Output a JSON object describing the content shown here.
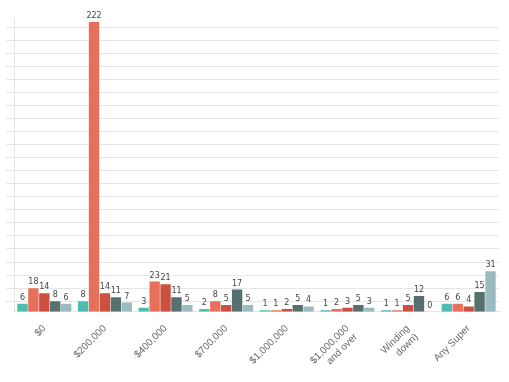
{
  "chart_data": {
    "type": "bar",
    "categories": [
      "$0",
      "$200,000",
      "$400,000",
      "$700,000",
      "$1,000,000",
      "$1,000,000\nand over",
      "Winding\ndown)",
      "Any Super"
    ],
    "series": [
      {
        "color": "#4DBDB0",
        "values": [
          6,
          8,
          3,
          2,
          1,
          1,
          1,
          6
        ]
      },
      {
        "color": "#E8705A",
        "values": [
          18,
          222,
          23,
          8,
          1,
          2,
          1,
          6
        ]
      },
      {
        "color": "#CC5040",
        "values": [
          14,
          14,
          21,
          5,
          2,
          3,
          5,
          4
        ]
      },
      {
        "color": "#567070",
        "values": [
          8,
          11,
          11,
          17,
          5,
          5,
          12,
          15
        ]
      },
      {
        "color": "#9ABBC0",
        "values": [
          6,
          7,
          5,
          5,
          4,
          3,
          0,
          31
        ]
      }
    ],
    "ylim": [
      0,
      225
    ],
    "yticks": [
      8,
      18,
      28,
      38,
      48,
      58,
      68,
      78,
      88,
      98,
      108,
      118,
      128,
      138,
      148,
      158,
      168,
      178,
      188,
      198,
      208,
      218
    ],
    "grid": true,
    "data_labels": true,
    "tick_labels": "x"
  }
}
